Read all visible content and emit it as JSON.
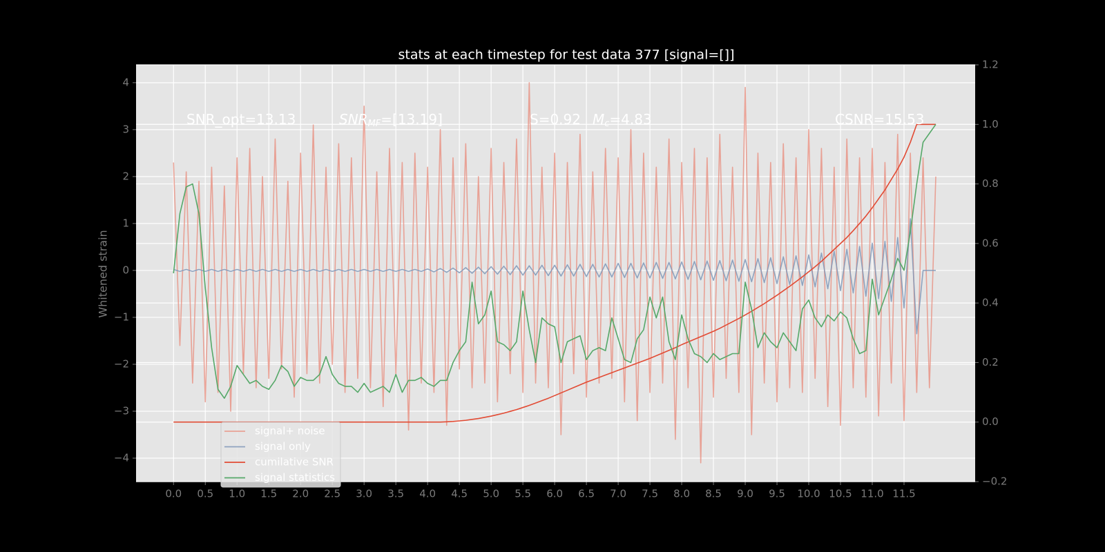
{
  "chart_data": {
    "type": "line",
    "title": "stats at each timestep for test data 377 [signal=[]]",
    "y_label": "Whitened strain",
    "annotations": [
      {
        "text": "SNR_opt=13.13"
      },
      {
        "text": "SNR",
        "sub": "MF",
        "rest": "=[13.19]"
      },
      {
        "text": "S=0.92"
      },
      {
        "text": "M",
        "sub": "c",
        "rest": "=4.83"
      },
      {
        "text": "CSNR=15.53"
      }
    ],
    "x": [
      0,
      0.1,
      0.2,
      0.3,
      0.4,
      0.5,
      0.6,
      0.7,
      0.8,
      0.9,
      1,
      1.1,
      1.2,
      1.3,
      1.4,
      1.5,
      1.6,
      1.7,
      1.8,
      1.9,
      2,
      2.1,
      2.2,
      2.3,
      2.4,
      2.5,
      2.6,
      2.7,
      2.8,
      2.9,
      3,
      3.1,
      3.2,
      3.3,
      3.4,
      3.5,
      3.6,
      3.7,
      3.8,
      3.9,
      4,
      4.1,
      4.2,
      4.3,
      4.4,
      4.5,
      4.6,
      4.7,
      4.8,
      4.9,
      5,
      5.1,
      5.2,
      5.3,
      5.4,
      5.5,
      5.6,
      5.7,
      5.8,
      5.9,
      6,
      6.1,
      6.2,
      6.3,
      6.4,
      6.5,
      6.6,
      6.7,
      6.8,
      6.9,
      7,
      7.1,
      7.2,
      7.3,
      7.4,
      7.5,
      7.6,
      7.7,
      7.8,
      7.9,
      8,
      8.1,
      8.2,
      8.3,
      8.4,
      8.5,
      8.6,
      8.7,
      8.8,
      8.9,
      9,
      9.1,
      9.2,
      9.3,
      9.4,
      9.5,
      9.6,
      9.7,
      9.8,
      9.9,
      10,
      10.1,
      10.2,
      10.3,
      10.4,
      10.5,
      10.6,
      10.7,
      10.8,
      10.9,
      11,
      11.1,
      11.2,
      11.3,
      11.4,
      11.5,
      11.6,
      11.7,
      11.8,
      11.9,
      12
    ],
    "series": [
      {
        "name": "signal+ noise",
        "color": "#e8897a",
        "opacity": 0.75,
        "values": [
          2.3,
          -1.6,
          2.1,
          -2.4,
          1.9,
          -2.8,
          2.2,
          -2.6,
          1.8,
          -3.0,
          2.4,
          -2.2,
          2.6,
          -2.5,
          2.0,
          -2.3,
          2.8,
          -2.1,
          1.9,
          -2.7,
          2.5,
          -2.2,
          3.1,
          -2.4,
          2.2,
          -2.0,
          2.7,
          -2.6,
          2.4,
          -2.3,
          3.5,
          -2.5,
          2.1,
          -2.9,
          2.6,
          -2.2,
          2.3,
          -3.4,
          2.5,
          -2.4,
          2.2,
          -2.6,
          3.0,
          -3.3,
          2.4,
          -2.1,
          2.7,
          -2.5,
          2.0,
          -2.4,
          2.6,
          -2.8,
          2.3,
          -2.2,
          2.8,
          -2.6,
          4.0,
          -2.4,
          2.2,
          -2.5,
          2.5,
          -3.5,
          2.3,
          -2.2,
          2.9,
          -2.7,
          2.1,
          -2.4,
          2.6,
          -2.3,
          2.4,
          -2.8,
          3.0,
          -3.2,
          2.5,
          -2.6,
          2.2,
          -2.4,
          2.8,
          -3.6,
          2.3,
          -2.5,
          2.6,
          -4.1,
          2.4,
          -2.7,
          2.9,
          -2.3,
          2.2,
          -2.6,
          3.9,
          -3.5,
          2.5,
          -2.4,
          2.3,
          -2.8,
          2.7,
          -2.5,
          2.4,
          -2.6,
          3.0,
          -2.3,
          2.6,
          -2.9,
          2.2,
          -3.3,
          2.8,
          -2.5,
          2.4,
          -2.7,
          2.6,
          -3.1,
          2.3,
          -2.4,
          2.9,
          -3.2,
          2.5,
          -2.6,
          2.4,
          -2.5,
          2.0
        ]
      },
      {
        "name": "signal only",
        "color": "#7f98b8",
        "opacity": 0.85,
        "values": [
          0.02,
          -0.02,
          0.02,
          -0.02,
          0.02,
          -0.02,
          0.02,
          -0.02,
          0.02,
          -0.02,
          0.02,
          -0.02,
          0.02,
          -0.02,
          0.02,
          -0.02,
          0.02,
          -0.02,
          0.02,
          -0.02,
          0.02,
          -0.02,
          0.02,
          -0.02,
          0.02,
          -0.02,
          0.02,
          -0.02,
          0.02,
          -0.02,
          0.02,
          -0.02,
          0.02,
          -0.02,
          0.02,
          -0.02,
          0.02,
          -0.02,
          0.02,
          -0.02,
          0.03,
          -0.03,
          0.04,
          -0.04,
          0.05,
          -0.05,
          0.06,
          -0.06,
          0.07,
          -0.07,
          0.08,
          -0.08,
          0.09,
          -0.09,
          0.1,
          -0.1,
          0.1,
          -0.1,
          0.11,
          -0.11,
          0.11,
          -0.12,
          0.12,
          -0.12,
          0.13,
          -0.13,
          0.13,
          -0.14,
          0.14,
          -0.14,
          0.15,
          -0.15,
          0.15,
          -0.16,
          0.16,
          -0.16,
          0.17,
          -0.17,
          0.17,
          -0.18,
          0.18,
          -0.19,
          0.19,
          -0.2,
          0.2,
          -0.21,
          0.21,
          -0.22,
          0.22,
          -0.23,
          0.23,
          -0.24,
          0.25,
          -0.26,
          0.27,
          -0.28,
          0.29,
          -0.3,
          0.31,
          -0.32,
          0.33,
          -0.35,
          0.37,
          -0.39,
          0.41,
          -0.43,
          0.45,
          -0.48,
          0.51,
          -0.55,
          0.58,
          -0.6,
          0.62,
          -0.66,
          0.7,
          -0.8,
          1.1,
          -1.35,
          0,
          0,
          0
        ]
      },
      {
        "name": "cumilative SNR",
        "color": "#e24a33",
        "axis": "y2",
        "values": [
          0,
          0,
          0,
          0,
          0,
          0,
          0,
          0,
          0,
          0,
          0,
          0,
          0,
          0,
          0,
          0,
          0,
          0,
          0,
          0,
          0,
          0,
          0,
          0,
          0,
          0,
          0,
          0,
          0,
          0,
          0,
          0,
          0,
          0,
          0,
          0,
          0,
          0,
          0,
          0,
          0,
          0,
          0,
          0.001,
          0.002,
          0.004,
          0.006,
          0.009,
          0.012,
          0.016,
          0.02,
          0.025,
          0.03,
          0.036,
          0.042,
          0.049,
          0.056,
          0.064,
          0.072,
          0.08,
          0.089,
          0.098,
          0.107,
          0.116,
          0.125,
          0.134,
          0.142,
          0.15,
          0.158,
          0.166,
          0.174,
          0.182,
          0.19,
          0.198,
          0.206,
          0.214,
          0.223,
          0.232,
          0.241,
          0.25,
          0.26,
          0.269,
          0.278,
          0.287,
          0.296,
          0.305,
          0.315,
          0.326,
          0.337,
          0.348,
          0.36,
          0.372,
          0.385,
          0.398,
          0.412,
          0.426,
          0.441,
          0.456,
          0.472,
          0.488,
          0.505,
          0.522,
          0.54,
          0.56,
          0.58,
          0.6,
          0.62,
          0.643,
          0.667,
          0.692,
          0.72,
          0.75,
          0.78,
          0.815,
          0.85,
          0.89,
          0.94,
          1.0,
          1.0,
          1.0,
          1.0
        ]
      },
      {
        "name": "signal statistics",
        "color": "#55a868",
        "axis": "y2",
        "values": [
          0.5,
          0.7,
          0.79,
          0.8,
          0.7,
          0.45,
          0.25,
          0.11,
          0.08,
          0.12,
          0.19,
          0.16,
          0.13,
          0.14,
          0.12,
          0.11,
          0.14,
          0.19,
          0.17,
          0.12,
          0.15,
          0.14,
          0.14,
          0.16,
          0.22,
          0.16,
          0.13,
          0.12,
          0.12,
          0.1,
          0.13,
          0.1,
          0.11,
          0.12,
          0.1,
          0.16,
          0.1,
          0.14,
          0.14,
          0.15,
          0.13,
          0.12,
          0.14,
          0.14,
          0.2,
          0.24,
          0.27,
          0.47,
          0.33,
          0.36,
          0.44,
          0.27,
          0.26,
          0.24,
          0.27,
          0.44,
          0.31,
          0.2,
          0.35,
          0.33,
          0.32,
          0.2,
          0.27,
          0.28,
          0.29,
          0.21,
          0.24,
          0.25,
          0.24,
          0.35,
          0.28,
          0.21,
          0.2,
          0.28,
          0.31,
          0.42,
          0.35,
          0.42,
          0.27,
          0.21,
          0.36,
          0.28,
          0.23,
          0.22,
          0.2,
          0.23,
          0.21,
          0.22,
          0.23,
          0.23,
          0.47,
          0.38,
          0.25,
          0.3,
          0.27,
          0.25,
          0.3,
          0.27,
          0.24,
          0.38,
          0.41,
          0.35,
          0.32,
          0.36,
          0.34,
          0.37,
          0.35,
          0.28,
          0.23,
          0.24,
          0.48,
          0.36,
          0.42,
          0.48,
          0.55,
          0.51,
          0.64,
          0.8,
          0.94,
          0.97,
          1.0
        ]
      }
    ],
    "xlim": [
      -0.59,
      12.62
    ],
    "xticks": [
      {
        "value": 0,
        "label": "0.0"
      },
      0.5,
      {
        "value": 1,
        "label": "1.0"
      },
      1.5,
      {
        "value": 2,
        "label": "2.0"
      },
      2.5,
      {
        "value": 3,
        "label": "3.0"
      },
      3.5,
      {
        "value": 4,
        "label": "4.0"
      },
      4.5,
      {
        "value": 5,
        "label": "5.0"
      },
      5.5,
      {
        "value": 6,
        "label": "6.0"
      },
      6.5,
      {
        "value": 7,
        "label": "7.0"
      },
      7.5,
      {
        "value": 8,
        "label": "8.0"
      },
      8.5,
      {
        "value": 9,
        "label": "9.0"
      },
      9.5,
      {
        "value": 10,
        "label": "10.0"
      },
      10.5,
      {
        "value": 11,
        "label": "11.0"
      },
      11.5
    ],
    "ylim": [
      -4.5,
      4.38
    ],
    "yticks": [
      {
        "value": -4,
        "label": "−4"
      },
      {
        "value": -3,
        "label": "−3"
      },
      {
        "value": -2,
        "label": "−2"
      },
      {
        "value": -1,
        "label": "−1"
      },
      0,
      1,
      2,
      3,
      4
    ],
    "y2lim": [
      -0.2,
      1.2
    ],
    "y2ticks": [
      {
        "value": -0.2,
        "label": "−0.2"
      },
      {
        "value": 0,
        "label": "0.0"
      },
      0.2,
      0.4,
      0.6,
      0.8,
      {
        "value": 1,
        "label": "1.0"
      },
      1.2
    ],
    "grid": true,
    "legend": "lower left"
  }
}
